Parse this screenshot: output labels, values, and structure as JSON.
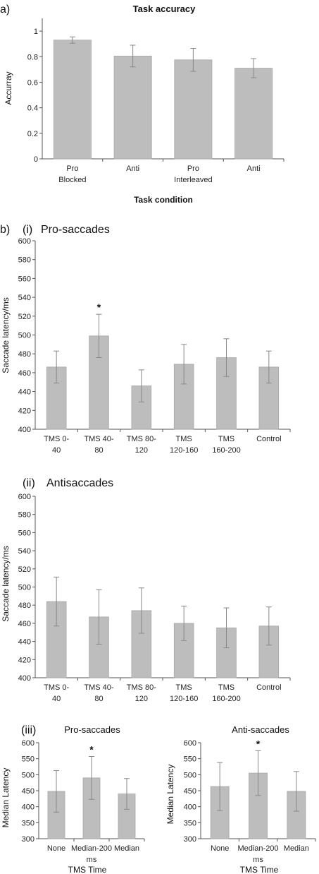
{
  "colors": {
    "bar": "#bdbdbd",
    "bar_edge": "#a8a8a8",
    "axis": "#555555",
    "error": "#888888"
  },
  "chart_data": [
    {
      "id": "a",
      "panel_label": "a)",
      "type": "bar",
      "title": "Task accuracy",
      "xlabel": "Task condition",
      "ylabel": "Accurray",
      "ylim": [
        0,
        1.1
      ],
      "yticks": [
        "0",
        "0.2",
        "0.4",
        "0.6",
        "0.8",
        "1"
      ],
      "ytick_values": [
        0,
        0.2,
        0.4,
        0.6,
        0.8,
        1
      ],
      "categories": [
        [
          "Pro",
          "Blocked"
        ],
        [
          "Anti"
        ],
        [
          "Pro",
          "Interleaved"
        ],
        [
          "Anti"
        ]
      ],
      "values": [
        0.93,
        0.805,
        0.775,
        0.71
      ],
      "errors": [
        0.025,
        0.085,
        0.09,
        0.075
      ],
      "significant": [
        false,
        false,
        false,
        false
      ],
      "grid": false
    },
    {
      "id": "b_i",
      "panel_label": "b)",
      "subpanel_label": "(i)",
      "type": "bar",
      "title": "Pro-saccades",
      "xlabel": "",
      "ylabel": "Saccade latency/ms",
      "ylim": [
        400,
        600
      ],
      "yticks": [
        "400",
        "420",
        "440",
        "460",
        "480",
        "500",
        "520",
        "540",
        "560",
        "580",
        "600"
      ],
      "ytick_values": [
        400,
        420,
        440,
        460,
        480,
        500,
        520,
        540,
        560,
        580,
        600
      ],
      "categories": [
        [
          "TMS 0-",
          "40"
        ],
        [
          "TMS 40-",
          "80"
        ],
        [
          "TMS 80-",
          "120"
        ],
        [
          "TMS",
          "120-160"
        ],
        [
          "TMS",
          "160-200"
        ],
        [
          "Control"
        ]
      ],
      "values": [
        466,
        499,
        446,
        469,
        476,
        466
      ],
      "errors": [
        17,
        23,
        17,
        21,
        20,
        17
      ],
      "significant": [
        false,
        true,
        false,
        false,
        false,
        false
      ],
      "grid": false
    },
    {
      "id": "b_ii",
      "subpanel_label": "(ii)",
      "type": "bar",
      "title": "Antisaccades",
      "xlabel": "",
      "ylabel": "Saccade latency/ms",
      "ylim": [
        400,
        600
      ],
      "yticks": [
        "400",
        "420",
        "440",
        "460",
        "480",
        "500",
        "520",
        "540",
        "560",
        "580",
        "600"
      ],
      "ytick_values": [
        400,
        420,
        440,
        460,
        480,
        500,
        520,
        540,
        560,
        580,
        600
      ],
      "categories": [
        [
          "TMS 0-",
          "40"
        ],
        [
          "TMS 40-",
          "80"
        ],
        [
          "TMS 80-",
          "120"
        ],
        [
          "TMS",
          "120-160"
        ],
        [
          "TMS",
          "160-200"
        ],
        [
          "Control"
        ]
      ],
      "values": [
        484,
        467,
        474,
        460,
        455,
        457
      ],
      "errors": [
        27,
        30,
        25,
        19,
        22,
        21
      ],
      "significant": [
        false,
        false,
        false,
        false,
        false,
        false
      ],
      "grid": false
    },
    {
      "id": "b_iii_pro",
      "subpanel_label": "(iii)",
      "type": "bar",
      "title": "Pro-saccades",
      "xlabel": "TMS Time",
      "ylabel": "Median Latency",
      "ylim": [
        300,
        600
      ],
      "yticks": [
        "300",
        "350",
        "400",
        "450",
        "500",
        "550",
        "600"
      ],
      "ytick_values": [
        300,
        350,
        400,
        450,
        500,
        550,
        600
      ],
      "categories": [
        [
          "None"
        ],
        [
          "Median-200",
          "ms"
        ],
        [
          "Median"
        ]
      ],
      "values": [
        448,
        490,
        440
      ],
      "errors": [
        65,
        67,
        48
      ],
      "significant": [
        false,
        true,
        false
      ],
      "grid": false
    },
    {
      "id": "b_iii_anti",
      "type": "bar",
      "title": "Anti-saccades",
      "xlabel": "TMS Time",
      "ylabel": "Median Latency",
      "ylim": [
        300,
        600
      ],
      "yticks": [
        "300",
        "350",
        "400",
        "450",
        "500",
        "550",
        "600"
      ],
      "ytick_values": [
        300,
        350,
        400,
        450,
        500,
        550,
        600
      ],
      "categories": [
        [
          "None"
        ],
        [
          "Median-200",
          "ms"
        ],
        [
          "Median"
        ]
      ],
      "values": [
        463,
        505,
        448
      ],
      "errors": [
        75,
        70,
        62
      ],
      "significant": [
        false,
        true,
        false
      ],
      "grid": false
    }
  ]
}
